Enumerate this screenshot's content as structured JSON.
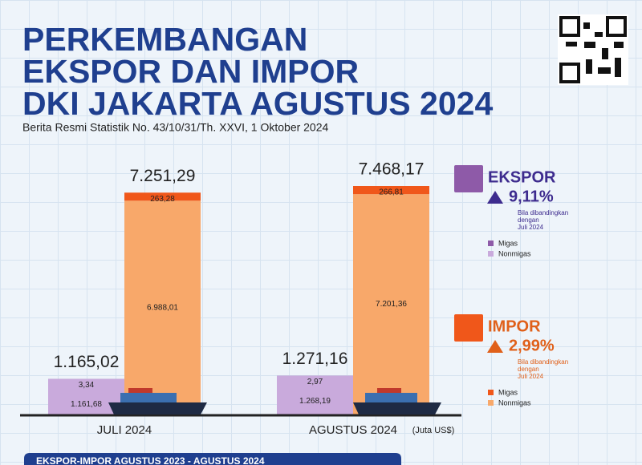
{
  "chart_data": {
    "type": "bar",
    "stacked": true,
    "title": [
      "PERKEMBANGAN",
      "EKSPOR DAN IMPOR",
      "DKI JAKARTA AGUSTUS 2024"
    ],
    "subtitle": "Berita Resmi Statistik No. 43/10/31/Th. XXVI, 1 Oktober 2024",
    "unit": "(Juta US$)",
    "categories": [
      "JULI 2024",
      "AGUSTUS 2024"
    ],
    "groups": [
      {
        "name": "EKSPOR",
        "change": {
          "value": 9.11,
          "label": "9,11%"
        },
        "note": [
          "Bila dibandingkan",
          "dengan",
          "Juli 2024"
        ],
        "color": "#3d2b8e",
        "totals": {
          "values": [
            1165.02,
            1271.16
          ],
          "value_labels": [
            "1.165,02",
            "1.271,16"
          ]
        },
        "series": [
          {
            "name": "Migas",
            "color": "#8e5aa8",
            "values": [
              3.34,
              2.97
            ],
            "value_labels": [
              "3,34",
              "2,97"
            ]
          },
          {
            "name": "Nonmigas",
            "color": "#c9aadc",
            "values": [
              1161.68,
              1268.19
            ],
            "value_labels": [
              "1.161,68",
              "1.268,19"
            ]
          }
        ]
      },
      {
        "name": "IMPOR",
        "change": {
          "value": 2.99,
          "label": "2,99%"
        },
        "note": [
          "Bila dibandingkan",
          "dengan",
          "Juli 2024"
        ],
        "color": "#e0601a",
        "totals": {
          "values": [
            7251.29,
            7468.17
          ],
          "value_labels": [
            "7.251,29",
            "7.468,17"
          ]
        },
        "series": [
          {
            "name": "Migas",
            "color": "#f0571a",
            "values": [
              263.28,
              266.81
            ],
            "value_labels": [
              "263,28",
              "266,81"
            ]
          },
          {
            "name": "Nonmigas",
            "color": "#f8a86a",
            "values": [
              6988.01,
              7201.36
            ],
            "value_labels": [
              "6.988,01",
              "7.201,36"
            ]
          }
        ]
      }
    ]
  },
  "footer": "EKSPOR-IMPOR AGUSTUS 2023 - AGUSTUS 2024"
}
